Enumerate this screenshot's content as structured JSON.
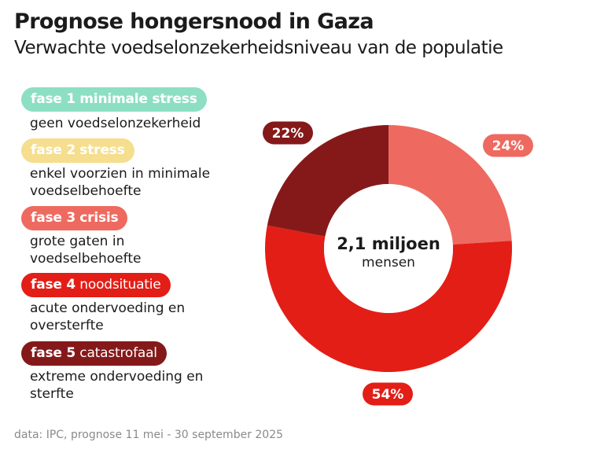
{
  "header": {
    "title": "Prognose hongersnood in Gaza",
    "subtitle": "Verwachte voedselonzekerheidsniveau van de populatie"
  },
  "legend": [
    {
      "phase": "fase 1",
      "name": "minimale stress",
      "label_all_bold": true,
      "description_lines": [
        "geen voedselonzekerheid"
      ],
      "color": "#8ddfc3"
    },
    {
      "phase": "fase 2",
      "name": "stress",
      "label_all_bold": true,
      "description_lines": [
        "enkel voorzien in minimale",
        "voedselbehoefte"
      ],
      "color": "#f5de8e"
    },
    {
      "phase": "fase 3",
      "name": "crisis",
      "label_all_bold": true,
      "description_lines": [
        "grote gaten in",
        "voedselbehoefte"
      ],
      "color": "#ee6a60"
    },
    {
      "phase": "fase 4",
      "name": "noodsituatie",
      "label_all_bold": false,
      "description_lines": [
        "acute ondervoeding en",
        "oversterfte"
      ],
      "color": "#e31e17"
    },
    {
      "phase": "fase 5",
      "name": "catastrofaal",
      "label_all_bold": false,
      "description_lines": [
        "extreme ondervoeding en",
        "sterfte"
      ],
      "color": "#85191a"
    }
  ],
  "chart_data": {
    "type": "pie",
    "variant": "donut",
    "title": "Prognose hongersnood in Gaza",
    "subtitle": "Verwachte voedselonzekerheidsniveau van de populatie",
    "center_label": {
      "value": "2,1 miljoen",
      "unit": "mensen"
    },
    "start": "top",
    "direction": "clockwise",
    "slices": [
      {
        "category": "fase 3 crisis",
        "value": 24,
        "label": "24%",
        "color": "#ee6a60"
      },
      {
        "category": "fase 4 noodsituatie",
        "value": 54,
        "label": "54%",
        "color": "#e31e17"
      },
      {
        "category": "fase 5 catastrofaal",
        "value": 22,
        "label": "22%",
        "color": "#85191a"
      }
    ]
  },
  "footer": {
    "source": "data: IPC, prognose 11 mei - 30 september 2025"
  }
}
